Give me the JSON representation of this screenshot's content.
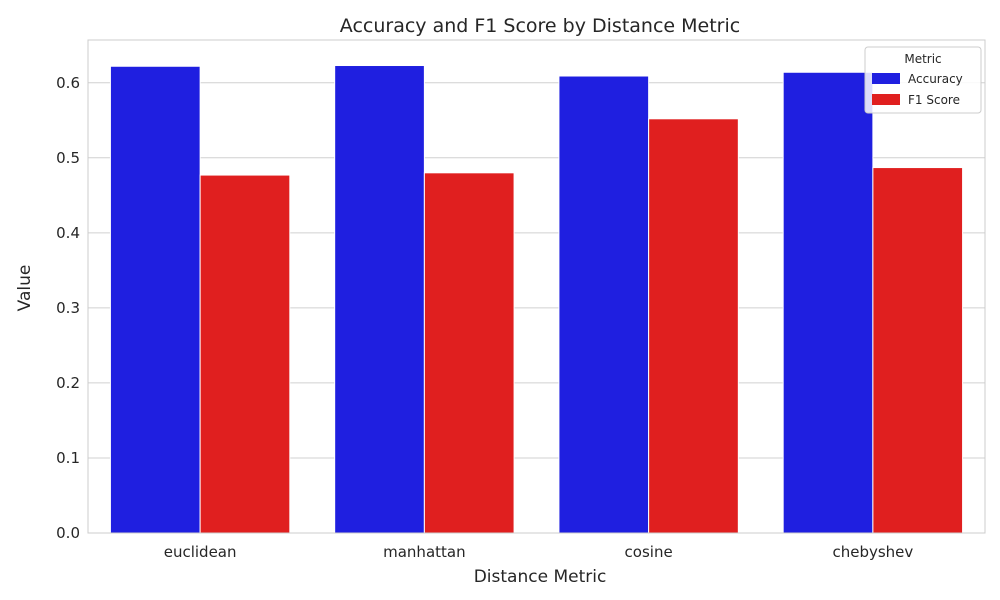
{
  "chart_data": {
    "type": "bar",
    "title": "Accuracy and F1 Score by Distance Metric",
    "xlabel": "Distance Metric",
    "ylabel": "Value",
    "categories": [
      "euclidean",
      "manhattan",
      "cosine",
      "chebyshev"
    ],
    "series": [
      {
        "name": "Accuracy",
        "color": "#1f1fe0",
        "values": [
          0.622,
          0.623,
          0.609,
          0.614
        ]
      },
      {
        "name": "F1 Score",
        "color": "#e01f1f",
        "values": [
          0.477,
          0.48,
          0.552,
          0.487
        ]
      }
    ],
    "ylim": [
      0,
      0.657
    ],
    "yticks": [
      0.0,
      0.1,
      0.2,
      0.3,
      0.4,
      0.5,
      0.6
    ],
    "ytick_labels": [
      "0.0",
      "0.1",
      "0.2",
      "0.3",
      "0.4",
      "0.5",
      "0.6"
    ],
    "grid": true,
    "legend": {
      "title": "Metric",
      "placement": "top-right"
    }
  }
}
